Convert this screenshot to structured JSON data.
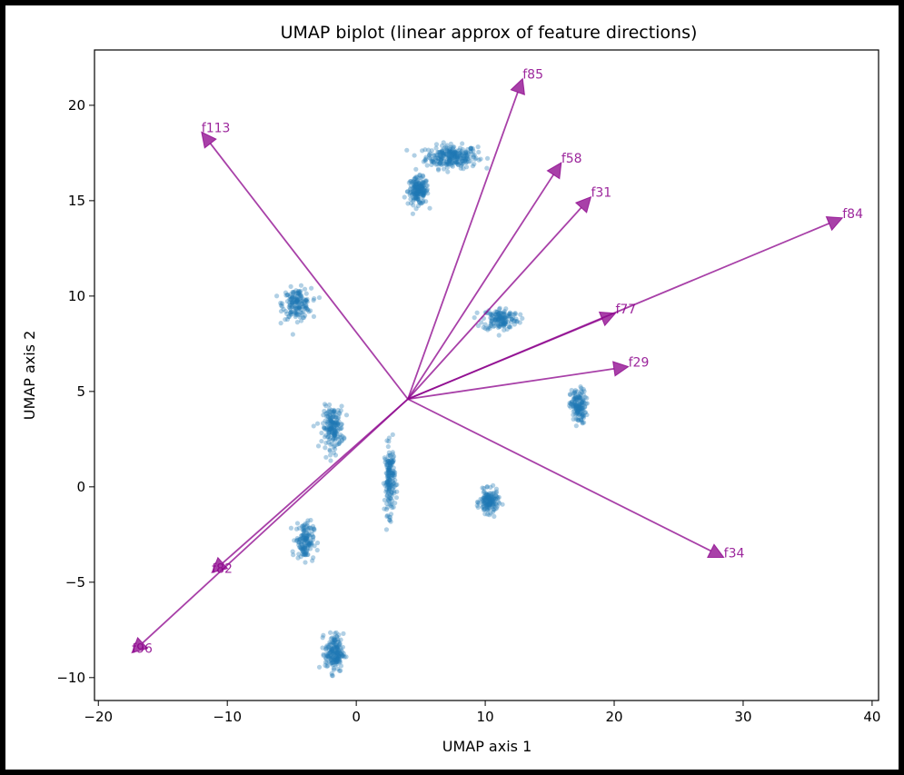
{
  "chart_data": {
    "type": "scatter",
    "title": "UMAP biplot (linear approx of feature directions)",
    "xlabel": "UMAP axis 1",
    "ylabel": "UMAP axis 2",
    "xlim": [
      -20.3,
      40.5
    ],
    "ylim": [
      -11.2,
      22.9
    ],
    "xticks": [
      -20,
      -10,
      0,
      10,
      20,
      30,
      40
    ],
    "yticks": [
      -10,
      -5,
      0,
      5,
      10,
      15,
      20
    ],
    "grid": false,
    "point_color": "#1f77b4",
    "arrow_color": "#8b008b",
    "clusters": [
      {
        "cx": 7.4,
        "cy": 17.3,
        "sx": 1.0,
        "sy": 0.3,
        "n": 260
      },
      {
        "cx": 4.8,
        "cy": 15.5,
        "sx": 0.4,
        "sy": 0.35,
        "n": 180
      },
      {
        "cx": -4.6,
        "cy": 9.6,
        "sx": 0.55,
        "sy": 0.4,
        "n": 160
      },
      {
        "cx": 11.2,
        "cy": 8.8,
        "sx": 0.7,
        "sy": 0.3,
        "n": 150
      },
      {
        "cx": 17.2,
        "cy": 4.2,
        "sx": 0.3,
        "sy": 0.45,
        "n": 150
      },
      {
        "cx": -1.8,
        "cy": 3.1,
        "sx": 0.4,
        "sy": 0.55,
        "n": 180
      },
      {
        "cx": 2.6,
        "cy": 0.4,
        "sx": 0.2,
        "sy": 0.9,
        "n": 170
      },
      {
        "cx": 10.3,
        "cy": -0.8,
        "sx": 0.35,
        "sy": 0.3,
        "n": 150
      },
      {
        "cx": -4.0,
        "cy": -2.8,
        "sx": 0.35,
        "sy": 0.5,
        "n": 140
      },
      {
        "cx": -1.7,
        "cy": -8.7,
        "sx": 0.35,
        "sy": 0.5,
        "n": 180
      }
    ],
    "arrow_origin": [
      4.0,
      4.6
    ],
    "arrows": [
      {
        "label": "f85",
        "x": 12.9,
        "y": 21.4
      },
      {
        "label": "f113",
        "x": -12.0,
        "y": 18.6
      },
      {
        "label": "f58",
        "x": 15.9,
        "y": 17.0
      },
      {
        "label": "f31",
        "x": 18.2,
        "y": 15.2
      },
      {
        "label": "f84",
        "x": 37.7,
        "y": 14.1
      },
      {
        "label": "f77",
        "x": 20.1,
        "y": 9.1
      },
      {
        "label": "f29",
        "x": 21.1,
        "y": 6.3
      },
      {
        "label": "f34",
        "x": 28.5,
        "y": -3.7
      },
      {
        "label": "f82",
        "x": -11.2,
        "y": -4.5
      },
      {
        "label": "f96",
        "x": -17.4,
        "y": -8.7
      }
    ]
  }
}
